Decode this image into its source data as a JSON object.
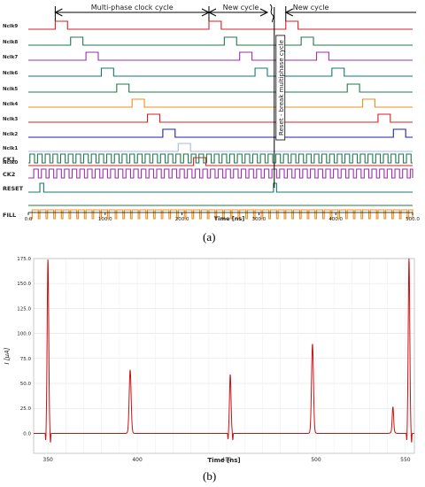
{
  "captions": {
    "a": "(a)",
    "b": "(b)"
  },
  "chart_data": [
    {
      "type": "line",
      "title": "",
      "xlabel": "Time [ns]",
      "xlim": [
        0,
        500
      ],
      "xticks": [
        "0.0",
        "100.0",
        "200.0",
        "300.0",
        "400.0",
        "500.0"
      ],
      "annotations": {
        "multiphase": "Multi-phase clock cycle",
        "new_cycle_1": "New cycle",
        "new_cycle_2": "New cycle",
        "reset": "Reset - break multiphase cycle",
        "reset_time": 320
      },
      "series": [
        {
          "name": "Nclk9",
          "color": "#d62020",
          "pulses": [
            [
              35,
              51
            ],
            [
              235,
              251
            ],
            [
              335,
              351
            ]
          ]
        },
        {
          "name": "Nclk8",
          "color": "#1d7a4a",
          "pulses": [
            [
              55,
              71
            ],
            [
              255,
              271
            ],
            [
              355,
              371
            ]
          ]
        },
        {
          "name": "Nclk7",
          "color": "#9b2fae",
          "pulses": [
            [
              75,
              91
            ],
            [
              275,
              291
            ],
            [
              375,
              391
            ]
          ]
        },
        {
          "name": "Nclk6",
          "color": "#117a6e",
          "pulses": [
            [
              95,
              111
            ],
            [
              295,
              311
            ],
            [
              395,
              411
            ]
          ]
        },
        {
          "name": "Nclk5",
          "color": "#1d7a4a",
          "pulses": [
            [
              115,
              131
            ],
            [
              415,
              431
            ]
          ]
        },
        {
          "name": "Nclk4",
          "color": "#f08c1c",
          "pulses": [
            [
              135,
              151
            ],
            [
              435,
              451
            ]
          ]
        },
        {
          "name": "Nclk3",
          "color": "#d62020",
          "pulses": [
            [
              155,
              171
            ],
            [
              455,
              471
            ]
          ]
        },
        {
          "name": "Nclk2",
          "color": "#1c22a8",
          "pulses": [
            [
              175,
              191
            ],
            [
              475,
              491
            ]
          ]
        },
        {
          "name": "Nclk1",
          "color": "#a9b8e8",
          "pulses": [
            [
              195,
              211
            ]
          ]
        },
        {
          "name": "Nclk0",
          "color": "#d62020",
          "pulses": [
            [
              215,
              231
            ]
          ]
        },
        {
          "name": "CK1",
          "color": "#1d7a4a",
          "clock": {
            "period": 10,
            "start": 2,
            "high": 6
          }
        },
        {
          "name": "CK2",
          "color": "#9b2fae",
          "clock": {
            "period": 10,
            "start": 7,
            "high": 6
          }
        },
        {
          "name": "RESET",
          "color": "#117a6e",
          "pulses": [
            [
              15,
              20
            ],
            [
              319,
              323
            ]
          ]
        },
        {
          "name": "",
          "color": "#1d7a4a",
          "pulses": []
        },
        {
          "name": "FILL",
          "color": "#f08c1c",
          "clock": {
            "period": 10,
            "start": 5,
            "high": 8
          }
        }
      ]
    },
    {
      "type": "line",
      "title": "",
      "xlabel": "Time [ns]",
      "ylabel": "I [µA]",
      "xlim": [
        342,
        555
      ],
      "ylim": [
        -20,
        175
      ],
      "xticks": [
        350,
        400,
        450,
        500,
        550
      ],
      "yticks": [
        "0.0",
        "25.0",
        "50.0",
        "75.0",
        "100.0",
        "125.0",
        "150.0",
        "175.0"
      ],
      "grid": true,
      "series": [
        {
          "name": "",
          "color": "#cc1111",
          "spikes": [
            {
              "t": 350,
              "peak": 174,
              "dip": -10,
              "w": 1.3
            },
            {
              "t": 396,
              "peak": 62,
              "dip": 0,
              "w": 1.6
            },
            {
              "t": 452,
              "peak": 59,
              "dip": -7,
              "w": 1.3
            },
            {
              "t": 498,
              "peak": 88,
              "dip": 0,
              "w": 1.6
            },
            {
              "t": 543,
              "peak": 25,
              "dip": 0,
              "w": 1.2
            },
            {
              "t": 552,
              "peak": 175,
              "dip": -10,
              "w": 1.3
            }
          ]
        }
      ]
    }
  ]
}
